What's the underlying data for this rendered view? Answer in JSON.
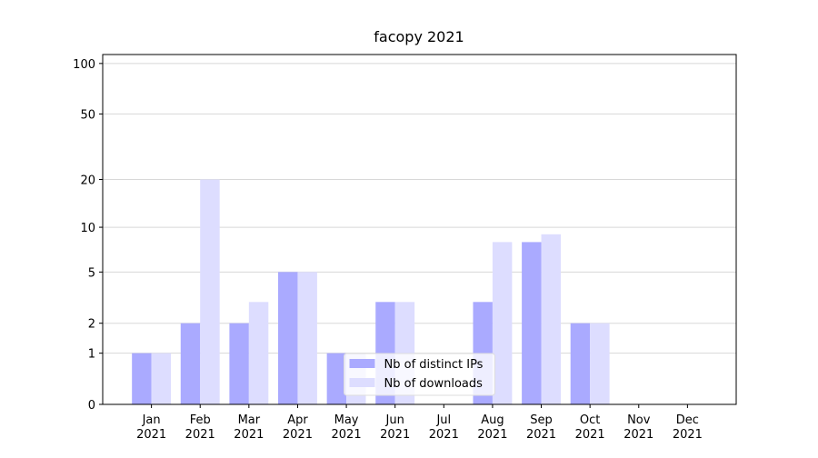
{
  "chart_data": {
    "type": "bar",
    "title": "facopy 2021",
    "categories": [
      "Jan\n2021",
      "Feb\n2021",
      "Mar\n2021",
      "Apr\n2021",
      "May\n2021",
      "Jun\n2021",
      "Jul\n2021",
      "Aug\n2021",
      "Sep\n2021",
      "Oct\n2021",
      "Nov\n2021",
      "Dec\n2021"
    ],
    "series": [
      {
        "name": "Nb of distinct IPs",
        "color": "#aaaaff",
        "values": [
          1,
          2,
          2,
          5,
          1,
          3,
          0,
          3,
          8,
          2,
          0,
          0
        ]
      },
      {
        "name": "Nb of downloads",
        "color": "#ddddff",
        "values": [
          1,
          20,
          3,
          5,
          1,
          3,
          0,
          8,
          9,
          2,
          0,
          0
        ]
      }
    ],
    "yscale": "symlog",
    "ylim": [
      0,
      113
    ],
    "yticks": [
      0,
      1,
      2,
      5,
      10,
      20,
      50,
      100
    ],
    "grid": true,
    "legend": "lower center"
  }
}
